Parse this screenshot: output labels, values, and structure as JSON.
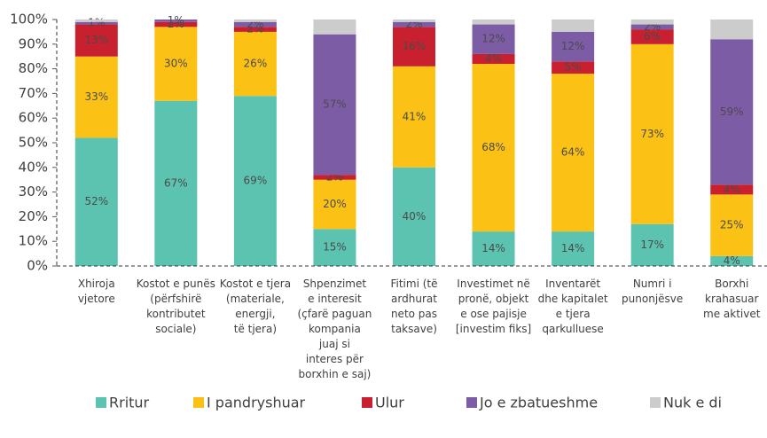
{
  "chart_data": {
    "type": "stacked_bar",
    "categories": [
      "Xhiroja\nvjetore",
      "Kostot e punës\n(përfshirë\nkontributet\nsociale)",
      "Kostot e tjera\n(materiale,\nenergji,\ntë tjera)",
      "Shpenzimet\ne interesit\n(çfarë paguan\nkompania\njuaj si\ninteres për\nborxhin e saj)",
      "Fitimi (të\nardhurat\nneto pas\ntaksave)",
      "Investimet në\npronë, objekt\ne ose pajisje\n[investim fiks]",
      "Inventarët\ndhe kapitalet\ne tjera\nqarkulluese",
      "Numri i\npunonjësve",
      "Borxhi\nkrahasuar\nme aktivet"
    ],
    "series": [
      {
        "name": "Rritur",
        "color": "#5cc3b1",
        "values": [
          52,
          67,
          69,
          15,
          40,
          14,
          14,
          17,
          4
        ],
        "value_labels": [
          "52%",
          "67%",
          "69%",
          "15%",
          "40%",
          "14%",
          "14%",
          "17%",
          "4%"
        ]
      },
      {
        "name": "I pandryshuar",
        "color": "#fbc115",
        "values": [
          33,
          30,
          26,
          20,
          41,
          68,
          64,
          73,
          25
        ],
        "value_labels": [
          "33%",
          "30%",
          "26%",
          "20%",
          "41%",
          "68%",
          "64%",
          "73%",
          "25%"
        ]
      },
      {
        "name": "Ulur",
        "color": "#c9202f",
        "values": [
          13,
          2,
          2,
          2,
          16,
          4,
          5,
          6,
          4
        ],
        "value_labels": [
          "13%",
          "2%",
          "2%",
          "2%",
          "16%",
          "4%",
          "5%",
          "6%",
          "4%"
        ]
      },
      {
        "name": "Jo e zbatueshme",
        "color": "#7d5ca6",
        "values": [
          1,
          1,
          2,
          57,
          2,
          12,
          12,
          2,
          59
        ],
        "value_labels": [
          "1%",
          "1%",
          "2%",
          "57%",
          "2%",
          "12%",
          "12%",
          "2%",
          "59%"
        ]
      },
      {
        "name": "Nuk e di",
        "color": "#cccccc",
        "values": [
          1,
          0,
          1,
          6,
          1,
          2,
          5,
          2,
          8
        ]
      }
    ],
    "ylim": [
      0,
      100
    ],
    "yticks": [
      {
        "value": 0,
        "label": "0%"
      },
      {
        "value": 10,
        "label": "10%"
      },
      {
        "value": 20,
        "label": "20%"
      },
      {
        "value": 30,
        "label": "30%"
      },
      {
        "value": 40,
        "label": "40%"
      },
      {
        "value": 50,
        "label": "50%"
      },
      {
        "value": 60,
        "label": "60%"
      },
      {
        "value": 70,
        "label": "70%"
      },
      {
        "value": 80,
        "label": "80%"
      },
      {
        "value": 90,
        "label": "90%"
      },
      {
        "value": 100,
        "label": "100%"
      }
    ],
    "grid": false,
    "legend": "bottom"
  }
}
